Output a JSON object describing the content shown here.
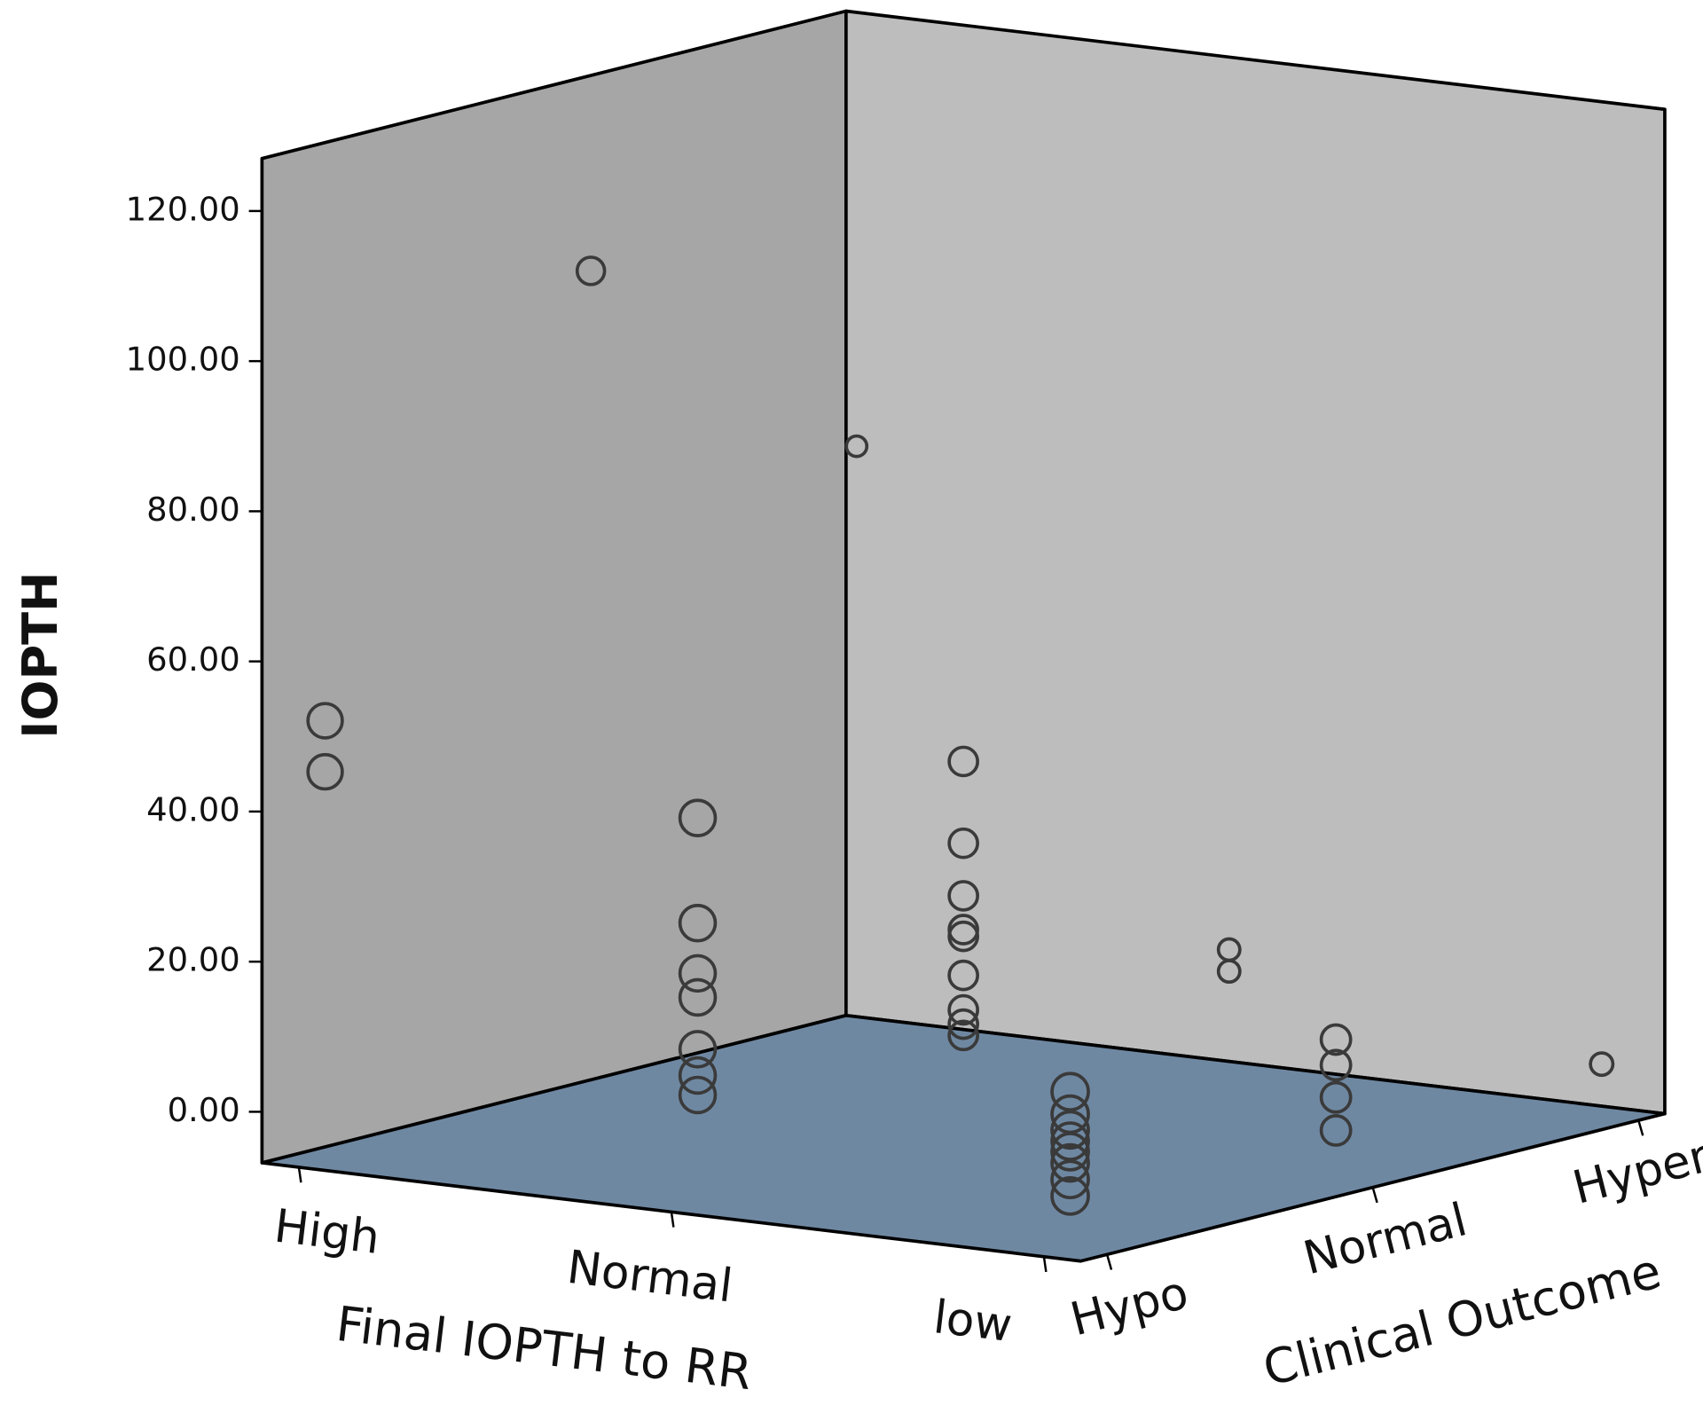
{
  "chart_data": {
    "type": "scatter3d",
    "y_label": "IOPTH",
    "x_label": "Final IOPTH to RR",
    "z_label": "Clinical Outcome",
    "x_categories": [
      "High",
      "Normal",
      "low"
    ],
    "z_categories": [
      "Hypo",
      "Normal",
      "Hyper"
    ],
    "ylim": [
      -6.8,
      127
    ],
    "yticks": [
      {
        "value": 0,
        "label": "0.00"
      },
      {
        "value": 20,
        "label": "20.00"
      },
      {
        "value": 40,
        "label": "40.00"
      },
      {
        "value": 60,
        "label": "60.00"
      },
      {
        "value": 80,
        "label": "80.00"
      },
      {
        "value": 100,
        "label": "100.00"
      },
      {
        "value": 120,
        "label": "120.00"
      }
    ],
    "color": "#3a3a3a",
    "left_wall_color": "#a6a6a6",
    "right_wall_color": "#bdbdbd",
    "floor_color": "#6f88a2",
    "points": {
      "x": [
        "High",
        "High",
        "High",
        "High",
        "Normal",
        "Normal",
        "Normal",
        "Normal",
        "Normal",
        "Normal",
        "Normal",
        "Normal",
        "Normal",
        "Normal",
        "Normal",
        "Normal",
        "Normal",
        "Normal",
        "Normal",
        "Normal",
        "Normal",
        "Normal",
        "low",
        "low",
        "low",
        "low",
        "low",
        "low",
        "low",
        "low",
        "low",
        "low",
        "low",
        "low",
        "low"
      ],
      "z": [
        "Hypo",
        "Hypo",
        "Normal",
        "Hyper",
        "Hypo",
        "Hypo",
        "Hypo",
        "Hypo",
        "Hypo",
        "Hypo",
        "Hypo",
        "Normal",
        "Normal",
        "Normal",
        "Normal",
        "Normal",
        "Normal",
        "Normal",
        "Normal",
        "Normal",
        "Hyper",
        "Hyper",
        "Hypo",
        "Hypo",
        "Hypo",
        "Hypo",
        "Hypo",
        "Hypo",
        "Hypo",
        "Hypo",
        "Normal",
        "Normal",
        "Normal",
        "Normal",
        "Hyper"
      ],
      "values": [
        51.8,
        45.0,
        102.8,
        70.5,
        44.8,
        30.8,
        24.1,
        20.9,
        14.0,
        10.5,
        7.9,
        43.4,
        32.5,
        25.5,
        21.0,
        20.1,
        14.9,
        10.3,
        8.4,
        6.9,
        9.4,
        6.5,
        14.3,
        11.3,
        9.2,
        7.7,
        6.3,
        4.8,
        2.6,
        0.4,
        12.3,
        8.9,
        4.6,
        0.2,
        0.1
      ]
    }
  }
}
